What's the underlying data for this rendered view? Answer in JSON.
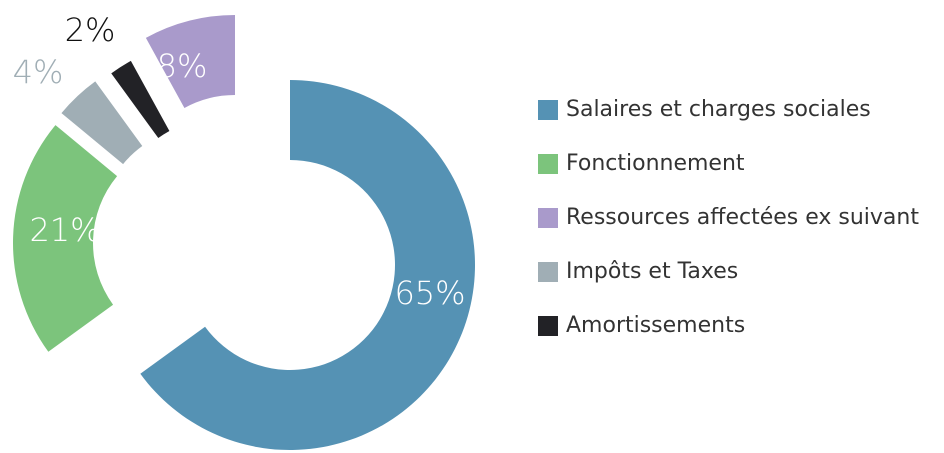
{
  "chart_data": {
    "type": "donut",
    "categories": [
      "Salaires et charges sociales",
      "Fonctionnement",
      "Impôts et Taxes",
      "Amortissements",
      "Ressources affectées ex suivant"
    ],
    "values": [
      65,
      21,
      4,
      2,
      8
    ],
    "value_labels": [
      "65%",
      "21%",
      "4%",
      "2%",
      "8%"
    ],
    "colors": [
      "#5592b4",
      "#7cc47c",
      "#a0aeb5",
      "#222226",
      "#a99acb"
    ]
  }
}
